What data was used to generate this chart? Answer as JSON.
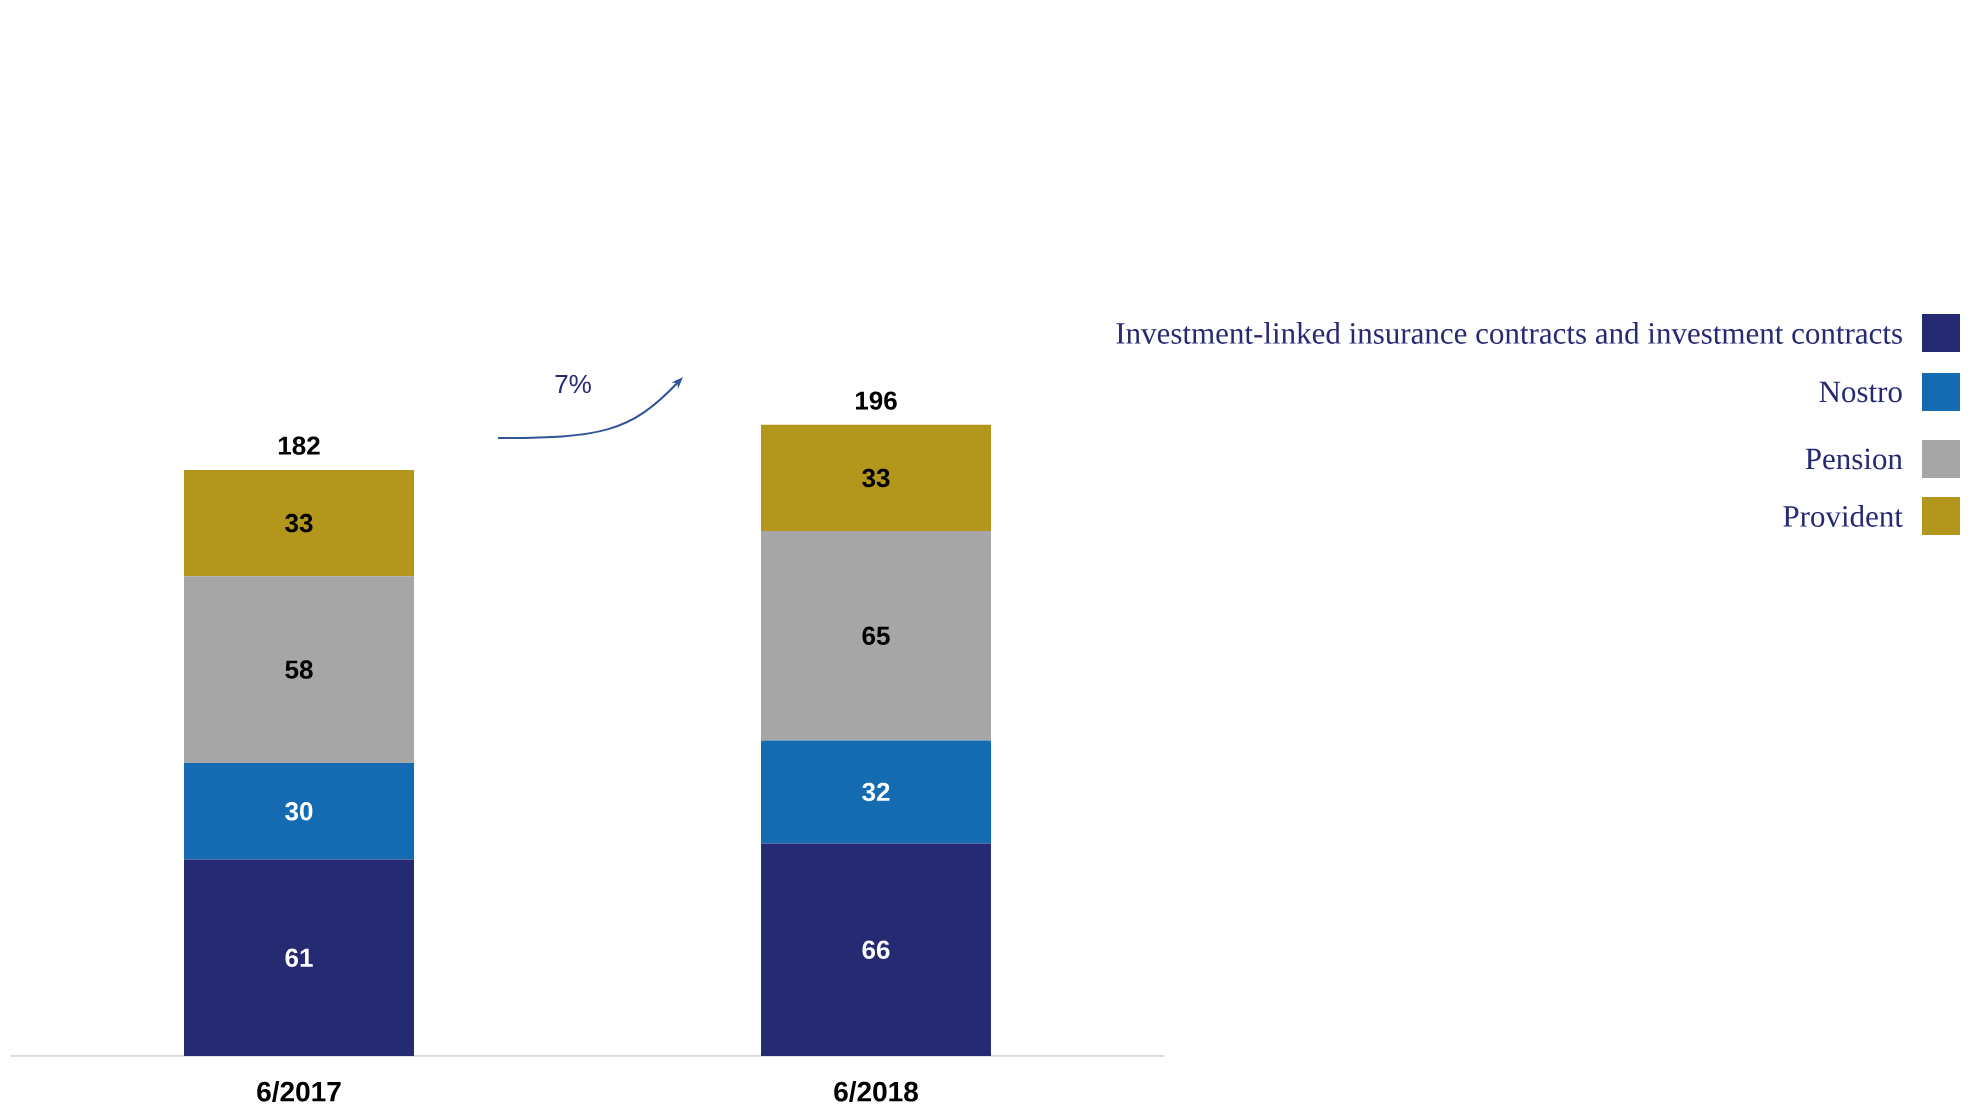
{
  "chart_data": {
    "type": "bar",
    "stacked": true,
    "categories": [
      "6/2017",
      "6/2018"
    ],
    "series": [
      {
        "name": "Investment-linked insurance contracts and investment contracts",
        "color": "#262a73",
        "values": [
          61,
          66
        ]
      },
      {
        "name": "Nostro",
        "color": "#146bb2",
        "values": [
          30,
          32
        ]
      },
      {
        "name": "Pension",
        "color": "#a6a6a6",
        "values": [
          58,
          65
        ]
      },
      {
        "name": "Provident",
        "color": "#b3961c",
        "values": [
          33,
          33
        ]
      }
    ],
    "totals": [
      "182",
      "196"
    ],
    "data_labels": true,
    "annotations": [
      "7%"
    ],
    "legend": "top right"
  }
}
